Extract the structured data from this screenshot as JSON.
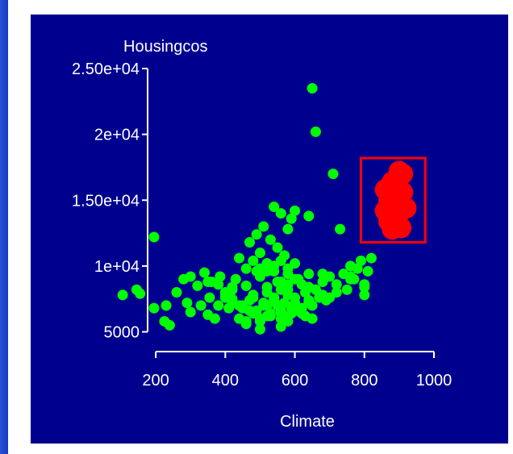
{
  "chart_data": {
    "type": "scatter",
    "xlabel": "Climate",
    "ylabel": "Housingcos",
    "xlim": [
      100,
      1000
    ],
    "ylim": [
      3500,
      25000
    ],
    "x_ticks": [
      200,
      400,
      600,
      800,
      1000
    ],
    "x_tick_labels": [
      "200",
      "400",
      "600",
      "800",
      "1000"
    ],
    "y_ticks": [
      5000,
      10000,
      15000,
      20000,
      25000
    ],
    "y_tick_labels": [
      "5000",
      "1e+04",
      "1.50e+04",
      "2e+04",
      "2.50e+04"
    ],
    "grid": false,
    "legend": "none",
    "colors": {
      "background": "#00008f",
      "points": "#00ff00",
      "highlight": "#ff0000",
      "axis": "#ffffff"
    },
    "series": [
      {
        "role": "points",
        "x": [
          105,
          145,
          155,
          195,
          195,
          225,
          230,
          240,
          260,
          280,
          290,
          300,
          320,
          330,
          340,
          350,
          355,
          360,
          370,
          380,
          385,
          400,
          410,
          420,
          430,
          440,
          450,
          460,
          470,
          480,
          490,
          500,
          510,
          520,
          530,
          540,
          550,
          560,
          570,
          580,
          590,
          600,
          610,
          620,
          630,
          640,
          650,
          660,
          670,
          680,
          690,
          700,
          710,
          720,
          730,
          740,
          750,
          760,
          770,
          780,
          790,
          800,
          810,
          820,
          470,
          490,
          500,
          510,
          520,
          530,
          540,
          550,
          560,
          570,
          580,
          590,
          600,
          440,
          460,
          480,
          500,
          520,
          540,
          560,
          580,
          600,
          620,
          640,
          380,
          400,
          420,
          450,
          470,
          490,
          510,
          530,
          550,
          570,
          590,
          610,
          630,
          650,
          300,
          350,
          420,
          480,
          520,
          560,
          600,
          640,
          680,
          720,
          760,
          800,
          540,
          560,
          580,
          600,
          620,
          640,
          650,
          660,
          700,
          760,
          800,
          460,
          500,
          520,
          560,
          580,
          600,
          520,
          540,
          560,
          580,
          600,
          460,
          480,
          500,
          400,
          420,
          440,
          500,
          520,
          540,
          560,
          580,
          600,
          640,
          680
        ],
        "y": [
          7800,
          8200,
          7900,
          12200,
          6800,
          5800,
          7000,
          5500,
          8000,
          9000,
          7200,
          6500,
          8500,
          7000,
          9500,
          6300,
          7600,
          8800,
          6000,
          7000,
          9200,
          8000,
          6800,
          7500,
          9000,
          6000,
          7000,
          8500,
          6600,
          7800,
          9600,
          5800,
          7000,
          8400,
          6200,
          7400,
          8800,
          6000,
          7200,
          8600,
          6400,
          7600,
          9000,
          6800,
          8000,
          9400,
          7000,
          8200,
          7600,
          8800,
          7400,
          9200,
          17000,
          8600,
          12800,
          9400,
          8200,
          10000,
          9000,
          9800,
          10400,
          8400,
          9600,
          10600,
          11800,
          12400,
          11000,
          13000,
          10200,
          12000,
          14500,
          11400,
          14000,
          10800,
          12800,
          13600,
          14200,
          10600,
          9800,
          10400,
          9200,
          9600,
          10000,
          8800,
          9400,
          9000,
          8600,
          8400,
          8600,
          7800,
          7200,
          6800,
          7400,
          6600,
          7200,
          6400,
          7000,
          6200,
          6800,
          6600,
          6200,
          6000,
          9200,
          8800,
          8200,
          7600,
          7000,
          6400,
          6800,
          7400,
          7800,
          8000,
          9000,
          8600,
          7400,
          6600,
          8200,
          7000,
          6400,
          7200,
          23500,
          20200,
          7600,
          9200,
          7800,
          5600,
          5200,
          6200,
          5400,
          5800,
          6600,
          8000,
          7600,
          8200,
          7800,
          7200,
          5800,
          6400,
          6000,
          7600,
          8400,
          7000,
          9800,
          10200,
          9600,
          10400,
          9800,
          10200,
          13800,
          9400
        ],
        "point_labels": []
      },
      {
        "role": "highlight",
        "x": [
          860,
          880,
          900,
          910,
          870,
          890,
          910,
          860,
          880,
          900,
          920,
          870,
          890,
          880,
          870,
          895,
          905,
          885
        ],
        "y": [
          15800,
          16400,
          17200,
          17000,
          15000,
          15400,
          15600,
          14200,
          14600,
          14000,
          14400,
          13400,
          13600,
          12800,
          16000,
          13000,
          12900,
          15200
        ],
        "point_labels": []
      }
    ],
    "annotations": [
      {
        "type": "rectangle",
        "x_range": [
          790,
          975
        ],
        "y_range": [
          11800,
          18200
        ],
        "color": "#ff0000"
      }
    ]
  }
}
